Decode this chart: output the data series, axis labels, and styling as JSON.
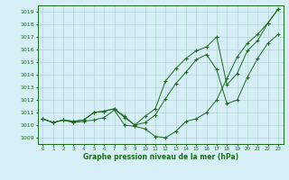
{
  "title": "Graphe pression niveau de la mer (hPa)",
  "background_color": "#d6eef5",
  "line_color": "#1a6b1a",
  "xlim": [
    -0.5,
    23.5
  ],
  "ylim": [
    1008.5,
    1019.5
  ],
  "yticks": [
    1009,
    1010,
    1011,
    1012,
    1013,
    1014,
    1015,
    1016,
    1017,
    1018,
    1019
  ],
  "xticks": [
    0,
    1,
    2,
    3,
    4,
    5,
    6,
    7,
    8,
    9,
    10,
    11,
    12,
    13,
    14,
    15,
    16,
    17,
    18,
    19,
    20,
    21,
    22,
    23
  ],
  "hours": [
    0,
    1,
    2,
    3,
    4,
    5,
    6,
    7,
    8,
    9,
    10,
    11,
    12,
    13,
    14,
    15,
    16,
    17,
    18,
    19,
    20,
    21,
    22,
    23
  ],
  "y_main": [
    1010.5,
    1010.2,
    1010.4,
    1010.2,
    1010.3,
    1010.4,
    1010.6,
    1011.2,
    1010.0,
    1009.9,
    1009.7,
    1009.1,
    1009.0,
    1009.5,
    1010.3,
    1010.5,
    1011.0,
    1012.0,
    1013.7,
    1015.4,
    1016.5,
    1017.2,
    1018.1,
    1019.2
  ],
  "y_mid": [
    1010.5,
    1010.2,
    1010.4,
    1010.3,
    1010.4,
    1011.0,
    1011.1,
    1011.3,
    1010.6,
    1010.0,
    1010.2,
    1010.8,
    1012.1,
    1013.3,
    1014.2,
    1015.2,
    1015.6,
    1014.4,
    1011.7,
    1012.0,
    1013.8,
    1015.3,
    1016.5,
    1017.2
  ],
  "y_upper": [
    1010.5,
    1010.2,
    1010.4,
    1010.3,
    1010.4,
    1011.0,
    1011.1,
    1011.3,
    1010.7,
    1010.0,
    1010.7,
    1011.3,
    1013.5,
    1014.5,
    1015.3,
    1015.9,
    1016.2,
    1017.0,
    1013.2,
    1014.1,
    1015.9,
    1016.7,
    1018.1,
    1019.2
  ],
  "grid_color": "#b0d8d0"
}
